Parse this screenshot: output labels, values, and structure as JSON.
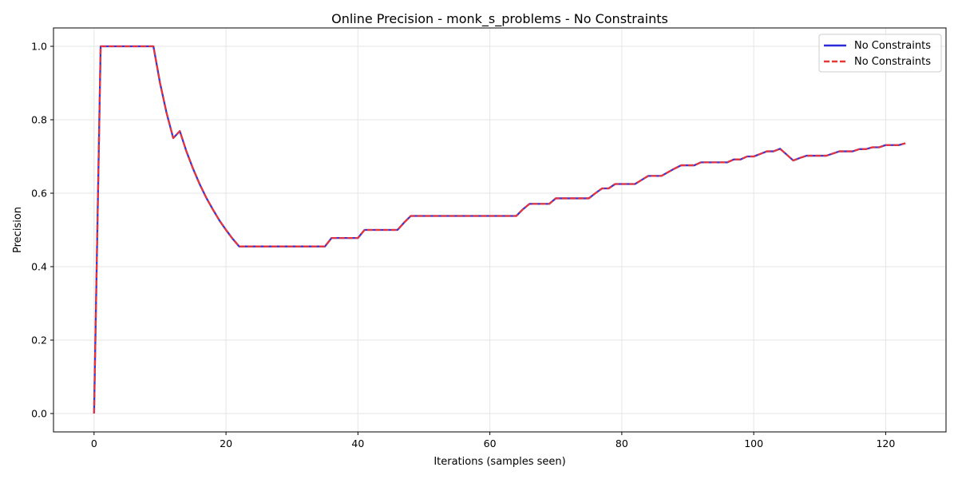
{
  "chart_data": {
    "type": "line",
    "title": "Online Precision - monk_s_problems - No Constraints",
    "xlabel": "Iterations (samples seen)",
    "ylabel": "Precision",
    "xlim": [
      -6.15,
      129.15
    ],
    "ylim": [
      -0.05,
      1.05
    ],
    "xticks": [
      0,
      20,
      40,
      60,
      80,
      100,
      120
    ],
    "yticks": [
      0.0,
      0.2,
      0.4,
      0.6,
      0.8,
      1.0
    ],
    "xtick_labels": [
      "0",
      "20",
      "40",
      "60",
      "80",
      "100",
      "120"
    ],
    "ytick_labels": [
      "0.0",
      "0.2",
      "0.4",
      "0.6",
      "0.8",
      "1.0"
    ],
    "grid": true,
    "legend_position": "top-right",
    "series": [
      {
        "name": "No Constraints",
        "color": "#2b2bd8",
        "style": "solid",
        "values": [
          0.0,
          1.0,
          1.0,
          1.0,
          1.0,
          1.0,
          1.0,
          1.0,
          1.0,
          1.0,
          0.9,
          0.818,
          0.75,
          0.769,
          0.714,
          0.667,
          0.625,
          0.588,
          0.556,
          0.526,
          0.5,
          0.476,
          0.455,
          0.455,
          0.455,
          0.455,
          0.455,
          0.455,
          0.455,
          0.455,
          0.455,
          0.455,
          0.455,
          0.455,
          0.455,
          0.455,
          0.478,
          0.478,
          0.478,
          0.478,
          0.478,
          0.5,
          0.5,
          0.5,
          0.5,
          0.5,
          0.5,
          0.52,
          0.538,
          0.538,
          0.538,
          0.538,
          0.538,
          0.538,
          0.538,
          0.538,
          0.538,
          0.538,
          0.538,
          0.538,
          0.538,
          0.538,
          0.538,
          0.538,
          0.538,
          0.556,
          0.571,
          0.571,
          0.571,
          0.571,
          0.586,
          0.586,
          0.586,
          0.586,
          0.586,
          0.586,
          0.6,
          0.613,
          0.613,
          0.625,
          0.625,
          0.625,
          0.625,
          0.636,
          0.647,
          0.647,
          0.647,
          0.657,
          0.667,
          0.676,
          0.676,
          0.676,
          0.684,
          0.684,
          0.684,
          0.684,
          0.684,
          0.692,
          0.692,
          0.7,
          0.7,
          0.707,
          0.714,
          0.714,
          0.721,
          0.705,
          0.689,
          0.696,
          0.702,
          0.702,
          0.702,
          0.702,
          0.708,
          0.714,
          0.714,
          0.714,
          0.72,
          0.72,
          0.725,
          0.725,
          0.731,
          0.731,
          0.731,
          0.736
        ]
      },
      {
        "name": "No Constraints",
        "color": "#ee3535",
        "style": "dashed",
        "values": [
          0.0,
          1.0,
          1.0,
          1.0,
          1.0,
          1.0,
          1.0,
          1.0,
          1.0,
          1.0,
          0.9,
          0.818,
          0.75,
          0.769,
          0.714,
          0.667,
          0.625,
          0.588,
          0.556,
          0.526,
          0.5,
          0.476,
          0.455,
          0.455,
          0.455,
          0.455,
          0.455,
          0.455,
          0.455,
          0.455,
          0.455,
          0.455,
          0.455,
          0.455,
          0.455,
          0.455,
          0.478,
          0.478,
          0.478,
          0.478,
          0.478,
          0.5,
          0.5,
          0.5,
          0.5,
          0.5,
          0.5,
          0.52,
          0.538,
          0.538,
          0.538,
          0.538,
          0.538,
          0.538,
          0.538,
          0.538,
          0.538,
          0.538,
          0.538,
          0.538,
          0.538,
          0.538,
          0.538,
          0.538,
          0.538,
          0.556,
          0.571,
          0.571,
          0.571,
          0.571,
          0.586,
          0.586,
          0.586,
          0.586,
          0.586,
          0.586,
          0.6,
          0.613,
          0.613,
          0.625,
          0.625,
          0.625,
          0.625,
          0.636,
          0.647,
          0.647,
          0.647,
          0.657,
          0.667,
          0.676,
          0.676,
          0.676,
          0.684,
          0.684,
          0.684,
          0.684,
          0.684,
          0.692,
          0.692,
          0.7,
          0.7,
          0.707,
          0.714,
          0.714,
          0.721,
          0.705,
          0.689,
          0.696,
          0.702,
          0.702,
          0.702,
          0.702,
          0.708,
          0.714,
          0.714,
          0.714,
          0.72,
          0.72,
          0.725,
          0.725,
          0.731,
          0.731,
          0.731,
          0.736
        ]
      }
    ]
  }
}
